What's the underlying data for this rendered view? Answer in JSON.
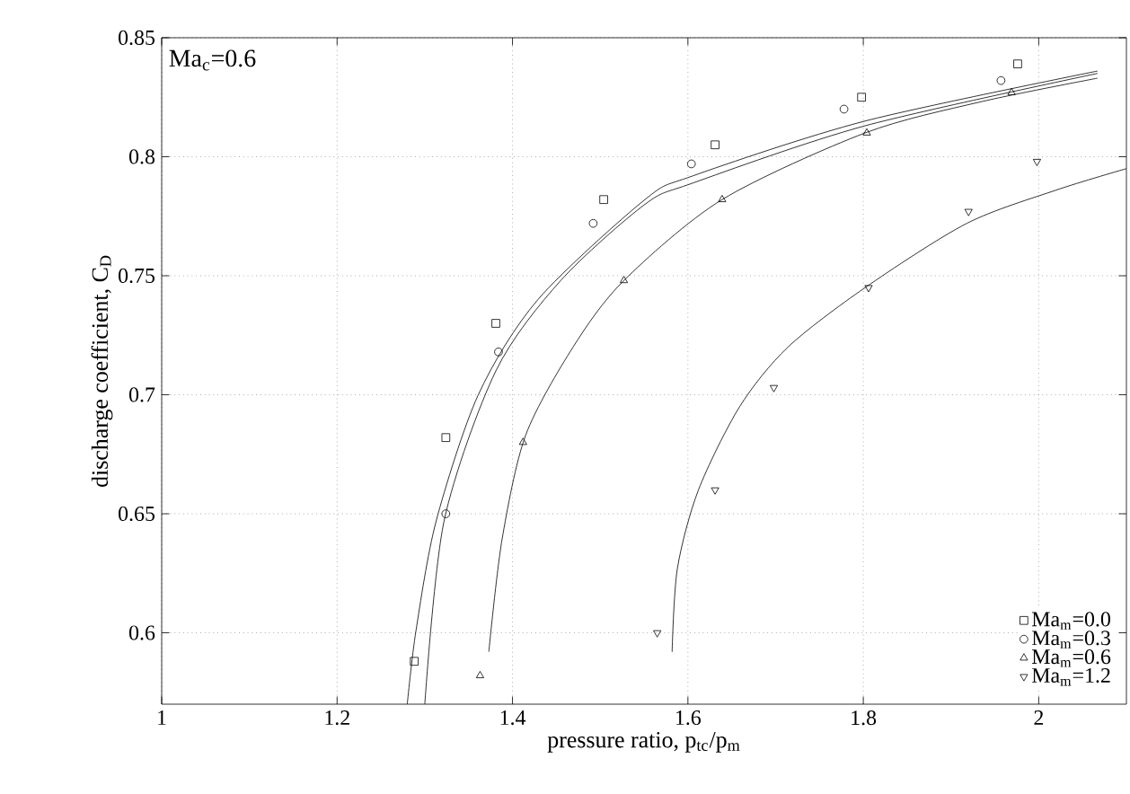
{
  "chart_data": {
    "type": "scatter",
    "xlabel": "pressure ratio, p$_{tc}$/p$_{m}$",
    "ylabel": "discharge coefficient, C$_{D}$",
    "annotations": [
      "Ma$_{c}$=0.6"
    ],
    "xlim": [
      1,
      2.1
    ],
    "ylim": [
      0.57,
      0.85
    ],
    "xticks": [
      1,
      1.2,
      1.4,
      1.6,
      1.8,
      2
    ],
    "yticks": [
      0.6,
      0.65,
      0.7,
      0.75,
      0.8,
      0.85
    ],
    "grid": true,
    "legend": "bottom right",
    "series": [
      {
        "name": "Ma$_{m}$=0.0",
        "color": "#000000",
        "marker": "square",
        "x": [
          1.288,
          1.324,
          1.381,
          1.504,
          1.631,
          1.798,
          1.976
        ],
        "values": [
          0.588,
          0.682,
          0.73,
          0.782,
          0.805,
          0.825,
          0.839
        ]
      },
      {
        "name": "Ma$_{m}$=0.3",
        "color": "#000000",
        "marker": "circle",
        "x": [
          1.324,
          1.384,
          1.492,
          1.604,
          1.778,
          1.957
        ],
        "values": [
          0.65,
          0.718,
          0.772,
          0.797,
          0.82,
          0.832
        ]
      },
      {
        "name": "Ma$_{m}$=0.6",
        "color": "#000000",
        "marker": "triangle",
        "x": [
          1.363,
          1.412,
          1.527,
          1.639,
          1.804,
          1.969
        ],
        "values": [
          0.582,
          0.68,
          0.748,
          0.782,
          0.81,
          0.827
        ]
      },
      {
        "name": "Ma$_{m}$=1.2",
        "color": "#000000",
        "marker": "triangle_down",
        "x": [
          1.565,
          1.631,
          1.698,
          1.806,
          1.92,
          1.998
        ],
        "values": [
          0.6,
          0.66,
          0.703,
          0.745,
          0.777,
          0.798
        ]
      },
      {
        "type": "line",
        "color": "#000000",
        "marker": "none",
        "x": [
          1.28,
          1.29,
          1.313,
          1.361,
          1.429,
          1.551,
          1.606,
          1.802,
          2.067
        ],
        "values": [
          0.57,
          0.601,
          0.647,
          0.7,
          0.74,
          0.782,
          0.792,
          0.815,
          0.836
        ]
      },
      {
        "type": "line",
        "color": "#000000",
        "marker": "none",
        "x": [
          1.3,
          1.322,
          1.381,
          1.455,
          1.551,
          1.606,
          1.802,
          2.067
        ],
        "values": [
          0.57,
          0.647,
          0.71,
          0.748,
          0.78,
          0.789,
          0.813,
          0.835
        ]
      },
      {
        "type": "line",
        "color": "#000000",
        "marker": "none",
        "x": [
          1.373,
          1.388,
          1.415,
          1.469,
          1.527,
          1.639,
          1.802,
          1.933,
          2.067
        ],
        "values": [
          0.592,
          0.639,
          0.683,
          0.72,
          0.748,
          0.782,
          0.81,
          0.823,
          0.833
        ]
      },
      {
        "type": "line",
        "color": "#000000",
        "marker": "none",
        "x": [
          1.582,
          1.588,
          1.612,
          1.659,
          1.714,
          1.802,
          1.918,
          2.02,
          2.1
        ],
        "values": [
          0.592,
          0.627,
          0.66,
          0.695,
          0.72,
          0.745,
          0.772,
          0.786,
          0.795
        ]
      }
    ]
  }
}
